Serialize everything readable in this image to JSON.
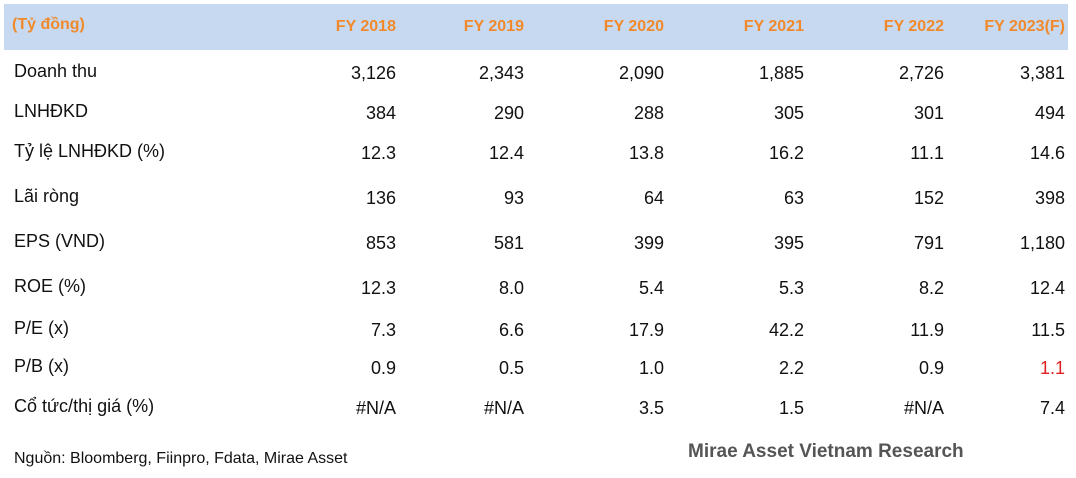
{
  "table": {
    "unit_label": "(Tỷ đồng)",
    "columns": [
      "FY 2018",
      "FY 2019",
      "FY 2020",
      "FY 2021",
      "FY 2022",
      "FY 2023(F)"
    ],
    "rows": [
      {
        "label": "Doanh thu",
        "values": [
          "3,126",
          "2,343",
          "2,090",
          "1,885",
          "2,726",
          "3,381"
        ]
      },
      {
        "label": "LNHĐKD",
        "values": [
          "384",
          "290",
          "288",
          "305",
          "301",
          "494"
        ]
      },
      {
        "label": "Tỷ lệ LNHĐKD (%)",
        "values": [
          "12.3",
          "12.4",
          "13.8",
          "16.2",
          "11.1",
          "14.6"
        ]
      },
      {
        "label": "Lãi ròng",
        "values": [
          "136",
          "93",
          "64",
          "63",
          "152",
          "398"
        ]
      },
      {
        "label": "EPS (VND)",
        "values": [
          "853",
          "581",
          "399",
          "395",
          "791",
          "1,180"
        ]
      },
      {
        "label": "ROE (%)",
        "values": [
          "12.3",
          "8.0",
          "5.4",
          "5.3",
          "8.2",
          "12.4"
        ]
      },
      {
        "label": "P/E (x)",
        "values": [
          "7.3",
          "6.6",
          "17.9",
          "42.2",
          "11.9",
          "11.5"
        ]
      },
      {
        "label": "P/B (x)",
        "values": [
          "0.9",
          "0.5",
          "1.0",
          "2.2",
          "0.9",
          "1.1"
        ]
      },
      {
        "label": "Cổ tức/thị giá (%)",
        "values": [
          "#N/A",
          "#N/A",
          "3.5",
          "1.5",
          "#N/A",
          "7.4"
        ]
      }
    ]
  },
  "footer": {
    "source": "Nguồn: Bloomberg, Fiinpro, Fdata, Mirae Asset",
    "brand": "Mirae Asset Vietnam Research"
  },
  "colors": {
    "header_background": "#c6d9f0",
    "header_text": "#f08a2c",
    "highlight_value": "#e02020"
  }
}
